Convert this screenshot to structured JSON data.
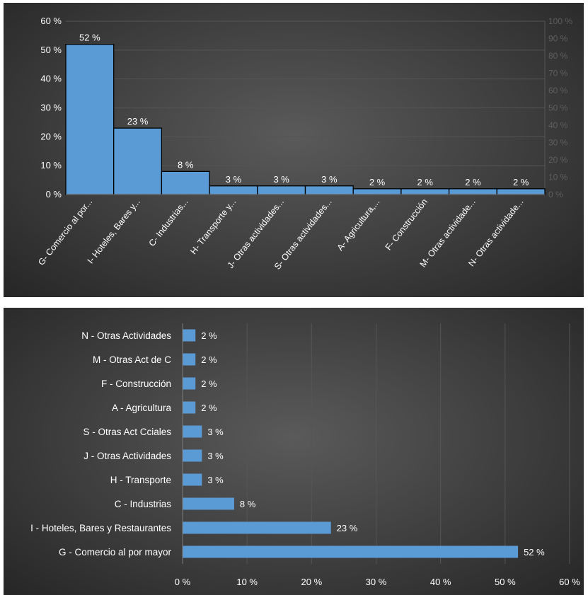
{
  "chart_data": [
    {
      "type": "bar",
      "orientation": "vertical",
      "categories": [
        "G- Comercio al por...",
        "I- Hoteles, Bares y...",
        "C- Industrias...",
        "H- Transporte y...",
        "J- Otras actividades...",
        "S- Otras actividades...",
        "A- Agricultura,...",
        "F- Construcción",
        "M- Otras actividade...",
        "N- Otras actividade..."
      ],
      "values": [
        52,
        23,
        8,
        3,
        3,
        3,
        2,
        2,
        2,
        2
      ],
      "data_labels": [
        "52 %",
        "23 %",
        "8 %",
        "3 %",
        "3 %",
        "3 %",
        "2 %",
        "2 %",
        "2 %",
        "2 %"
      ],
      "ylim": [
        0,
        60
      ],
      "y_ticks": [
        "0 %",
        "10 %",
        "20 %",
        "30 %",
        "40 %",
        "50 %",
        "60 %"
      ],
      "y2lim": [
        0,
        100
      ],
      "y2_ticks": [
        "0 %",
        "10 %",
        "20 %",
        "30 %",
        "40 %",
        "50 %",
        "60 %",
        "70 %",
        "80 %",
        "90 %",
        "100 %"
      ],
      "bar_color": "#5b9bd5",
      "bar_edge_color": "#000000",
      "background": "#3a3a3a",
      "grid": true
    },
    {
      "type": "bar",
      "orientation": "horizontal",
      "categories": [
        "N - Otras Actividades",
        "M - Otras Act de C",
        "F - Construcción",
        "A - Agricultura",
        "S - Otras Act Cciales",
        "J - Otras Actividades",
        "H - Transporte",
        "C - Industrias",
        "I - Hoteles, Bares y Restaurantes",
        "G - Comercio al por mayor"
      ],
      "values": [
        2,
        2,
        2,
        2,
        3,
        3,
        3,
        8,
        23,
        52
      ],
      "data_labels": [
        "2 %",
        "2 %",
        "2 %",
        "2 %",
        "3 %",
        "3 %",
        "3 %",
        "8 %",
        "23 %",
        "52 %"
      ],
      "xlim": [
        0,
        60
      ],
      "x_ticks": [
        "0 %",
        "10 %",
        "20 %",
        "30 %",
        "40 %",
        "50 %",
        "60 %"
      ],
      "bar_color": "#5b9bd5",
      "background": "#3a3a3a",
      "grid": true
    }
  ]
}
